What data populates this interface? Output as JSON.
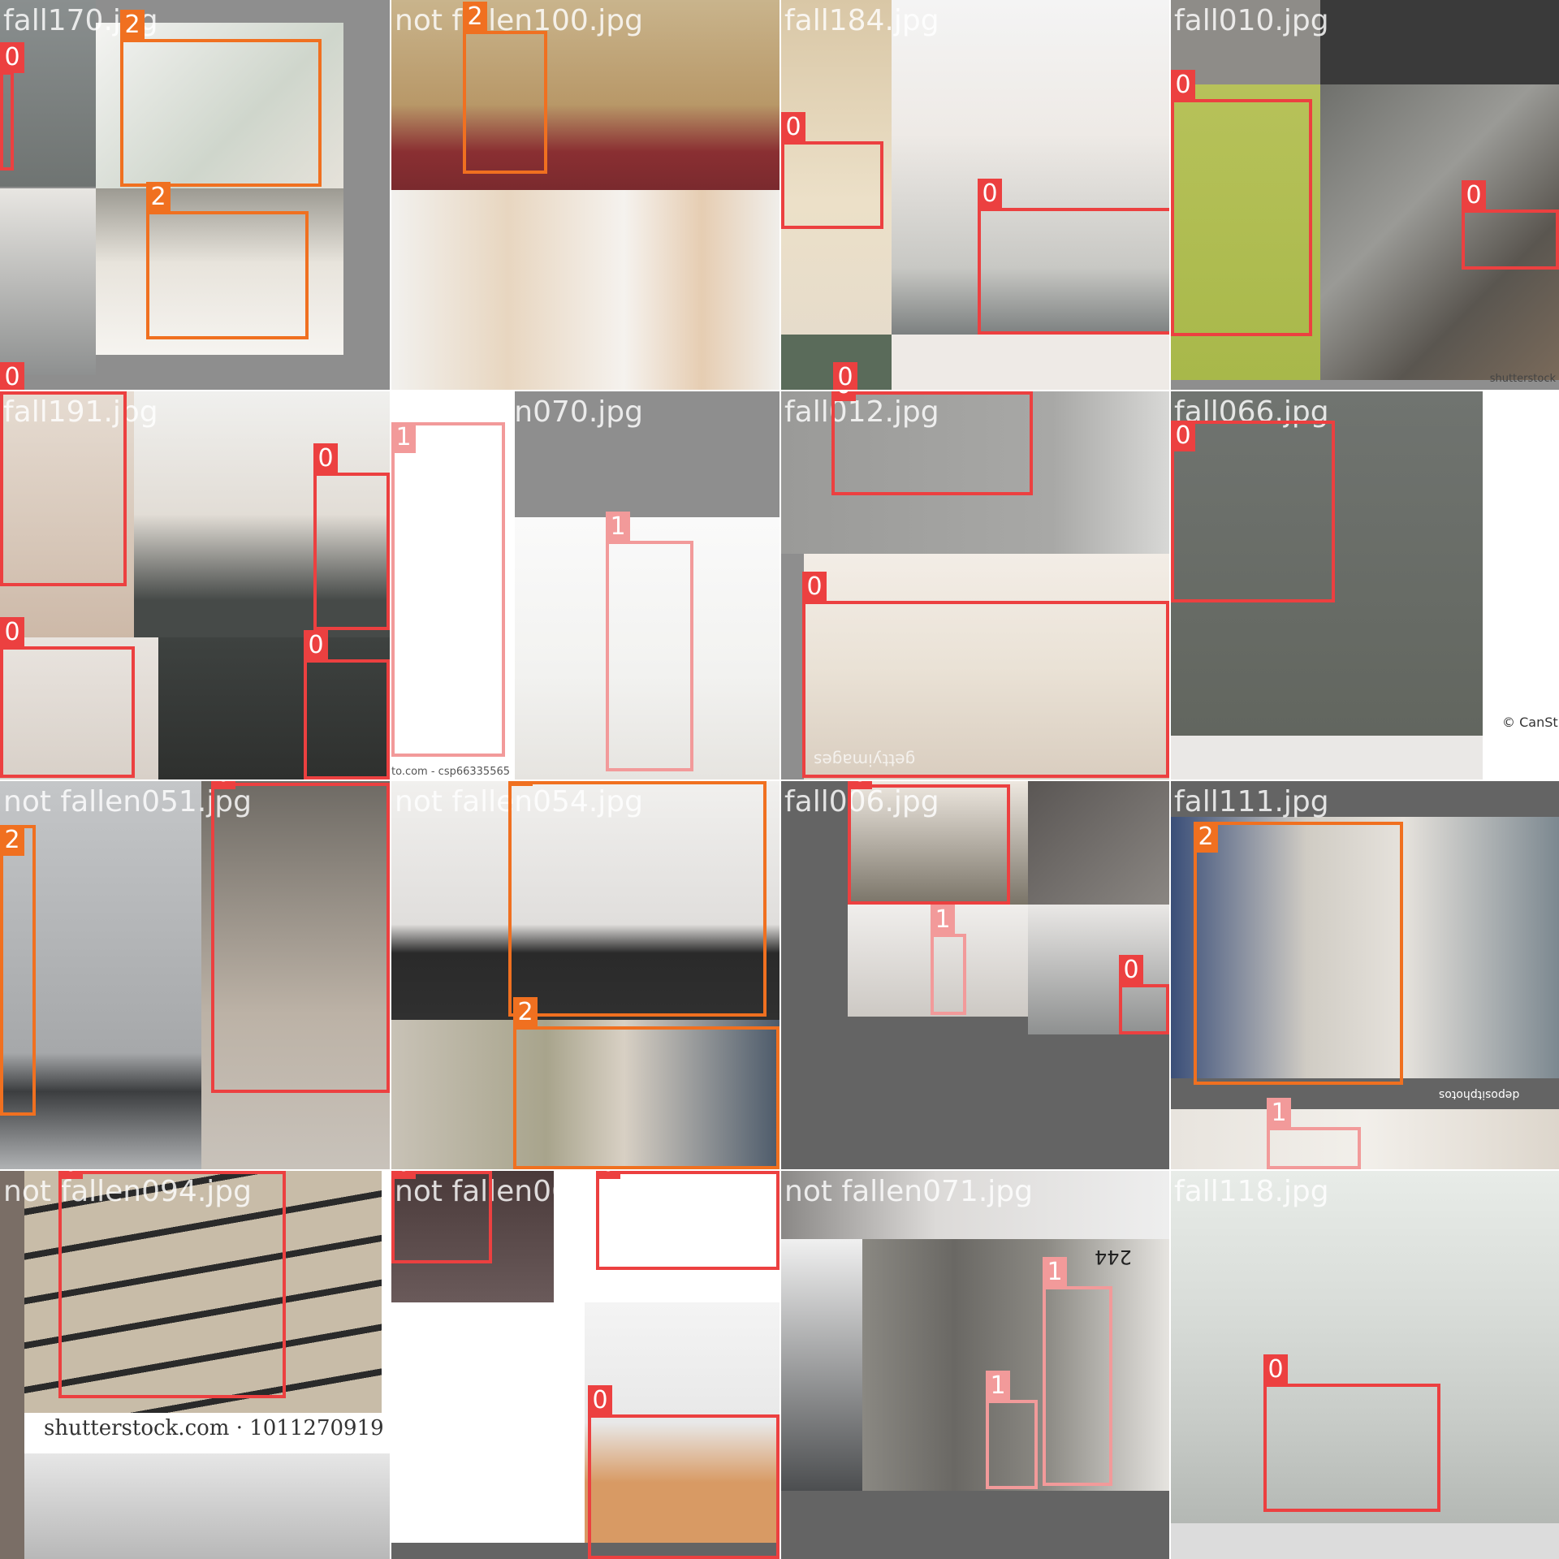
{
  "colors": {
    "class_0": "#ec4040",
    "class_1": "#f29a9a",
    "class_2": "#f07020",
    "padding_gray": "#8e8e8e",
    "padding_dark": "#646464"
  },
  "tiles": [
    {
      "caption": "fall170.jpg",
      "boxes": [
        "0",
        "0",
        "2",
        "2"
      ]
    },
    {
      "caption": "not fallen100.jpg",
      "boxes": [
        "2"
      ]
    },
    {
      "caption": "fall184.jpg",
      "boxes": [
        "0",
        "0",
        "0"
      ]
    },
    {
      "caption": "fall010.jpg",
      "boxes": [
        "0",
        "0"
      ]
    },
    {
      "caption": "fall191.jpg",
      "boxes": [
        "0",
        "0",
        "0",
        "0"
      ]
    },
    {
      "caption": "not fallen070.jpg",
      "boxes": [
        "1",
        "1"
      ]
    },
    {
      "caption": "fall012.jpg",
      "boxes": [
        "0",
        "0"
      ]
    },
    {
      "caption": "fall066.jpg",
      "boxes": [
        "0"
      ]
    },
    {
      "caption": "not fallen051.jpg",
      "boxes": [
        "2",
        "0"
      ]
    },
    {
      "caption": "not fallen054.jpg",
      "boxes": [
        "2",
        "2"
      ]
    },
    {
      "caption": "fall006.jpg",
      "boxes": [
        "0",
        "1",
        "0"
      ]
    },
    {
      "caption": "fall111.jpg",
      "boxes": [
        "2",
        "1"
      ]
    },
    {
      "caption": "not fallen094.jpg",
      "boxes": [
        "0"
      ]
    },
    {
      "caption": "not fallen060.jpg",
      "boxes": [
        "0",
        "0",
        "0"
      ]
    },
    {
      "caption": "not fallen071.jpg",
      "boxes": [
        "1",
        "1"
      ]
    },
    {
      "caption": "fall118.jpg",
      "boxes": [
        "0"
      ]
    }
  ],
  "watermarks": {
    "shutterstock_main": "shutterstock.com · 1011270919",
    "shutterstock_small": "shutterstock",
    "canstock": "© CanSt",
    "csp": "to.com - csp66335565",
    "gettyimages": "gettyimages",
    "depositphotos": "depositphotos",
    "house_number": "244"
  }
}
